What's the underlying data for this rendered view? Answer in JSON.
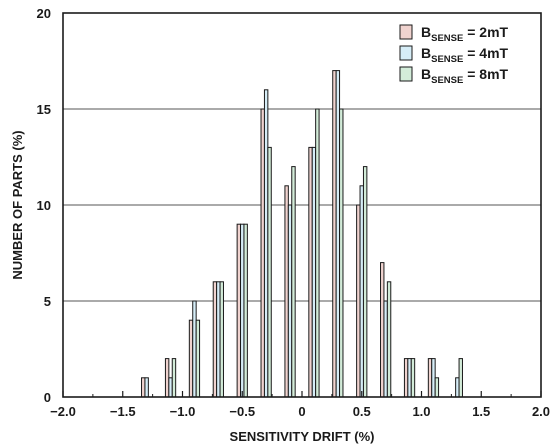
{
  "chart_data": {
    "type": "bar",
    "xlabel": "SENSITIVITY DRIFT (%)",
    "ylabel": "NUMBER OF PARTS (%)",
    "xlim": [
      -2.0,
      2.0
    ],
    "ylim": [
      0,
      20
    ],
    "x_ticks": [
      "−2.0",
      "−1.5",
      "−1.0",
      "−0.5",
      "0",
      "0.5",
      "1.0",
      "1.5",
      "2.0"
    ],
    "y_ticks": [
      "0",
      "5",
      "10",
      "15",
      "20"
    ],
    "grid": "horizontal",
    "legend_position": "top-right",
    "bin_width": 0.1,
    "categories": [
      -1.3,
      -1.1,
      -0.9,
      -0.7,
      -0.5,
      -0.3,
      -0.1,
      0.1,
      0.3,
      0.5,
      0.7,
      0.9,
      1.1,
      1.3
    ],
    "series": [
      {
        "legend_main": "B",
        "legend_sub": "SENSE",
        "legend_rest": " = 2mT",
        "color": "#f0d3cf",
        "values": [
          1,
          2,
          4,
          6,
          9,
          15,
          11,
          13,
          17,
          10,
          7,
          2,
          2,
          0
        ]
      },
      {
        "legend_main": "B",
        "legend_sub": "SENSE",
        "legend_rest": " = 4mT",
        "color": "#d6edf7",
        "values": [
          1,
          1,
          5,
          6,
          9,
          16,
          10,
          13,
          17,
          11,
          5,
          2,
          2,
          1
        ]
      },
      {
        "legend_main": "B",
        "legend_sub": "SENSE",
        "legend_rest": " = 8mT",
        "color": "#d3ecd9",
        "values": [
          0,
          2,
          4,
          6,
          9,
          13,
          12,
          15,
          15,
          12,
          6,
          2,
          1,
          2
        ]
      }
    ]
  }
}
